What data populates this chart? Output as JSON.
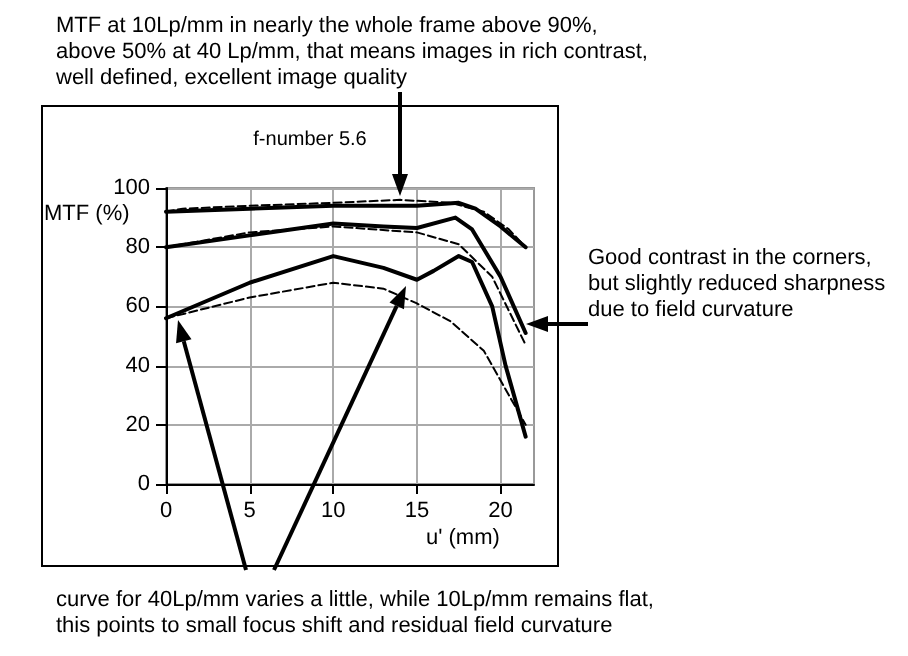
{
  "chart_data": {
    "type": "line",
    "title": "f-number 5.6",
    "xlabel": "u' (mm)",
    "ylabel": "MTF (%)",
    "annotations": [
      "MTF at 10Lp/mm in nearly the whole frame above 90%, above 50% at 40 Lp/mm, that means images in rich contrast, well defined, excellent image quality",
      "Good contrast in the corners, but slightly reduced sharpness due to field curvature",
      "curve for 40Lp/mm varies a little, while 10Lp/mm remains flat, this points to small focus shift and residual field curvature"
    ],
    "xlim": [
      0,
      22
    ],
    "xticks": [
      0,
      5,
      10,
      15,
      20
    ],
    "ylim": [
      0,
      100
    ],
    "yticks": [
      0,
      20,
      40,
      60,
      80,
      100
    ],
    "grid": true,
    "marker": "none",
    "series": [
      {
        "color": "#000000",
        "line_style": "solid",
        "x": [
          0,
          5,
          10,
          15,
          17.5,
          18.5,
          20,
          21.5
        ],
        "values": [
          92,
          93,
          94,
          94,
          95,
          93,
          87,
          80
        ]
      },
      {
        "color": "#000000",
        "line_style": "dashed",
        "x": [
          0,
          1,
          5,
          10,
          14,
          17,
          19,
          20.5,
          21.5
        ],
        "values": [
          92,
          93,
          94,
          95,
          96,
          95,
          92,
          86,
          80
        ]
      },
      {
        "color": "#000000",
        "line_style": "solid",
        "x": [
          0,
          5,
          10,
          13,
          15,
          17.3,
          18.3,
          20,
          21.5
        ],
        "values": [
          80,
          84,
          88,
          87,
          86.5,
          90,
          86,
          70,
          51
        ]
      },
      {
        "color": "#000000",
        "line_style": "dashed",
        "x": [
          0,
          5,
          10,
          15,
          17.5,
          19.5,
          21.5
        ],
        "values": [
          80,
          85,
          87,
          85,
          81,
          70,
          47
        ]
      },
      {
        "color": "#000000",
        "line_style": "solid",
        "x": [
          0,
          5,
          10,
          13,
          15,
          16,
          17.5,
          18.3,
          19.5,
          20.3,
          21.5
        ],
        "values": [
          56,
          68,
          77,
          73,
          69,
          72,
          77,
          75,
          60,
          40,
          16
        ]
      },
      {
        "color": "#000000",
        "line_style": "dashed",
        "x": [
          0,
          5,
          10,
          13,
          15,
          17,
          19,
          20.5,
          21.5
        ],
        "values": [
          56,
          63,
          68,
          66,
          61,
          55,
          45,
          30,
          20
        ]
      }
    ]
  }
}
